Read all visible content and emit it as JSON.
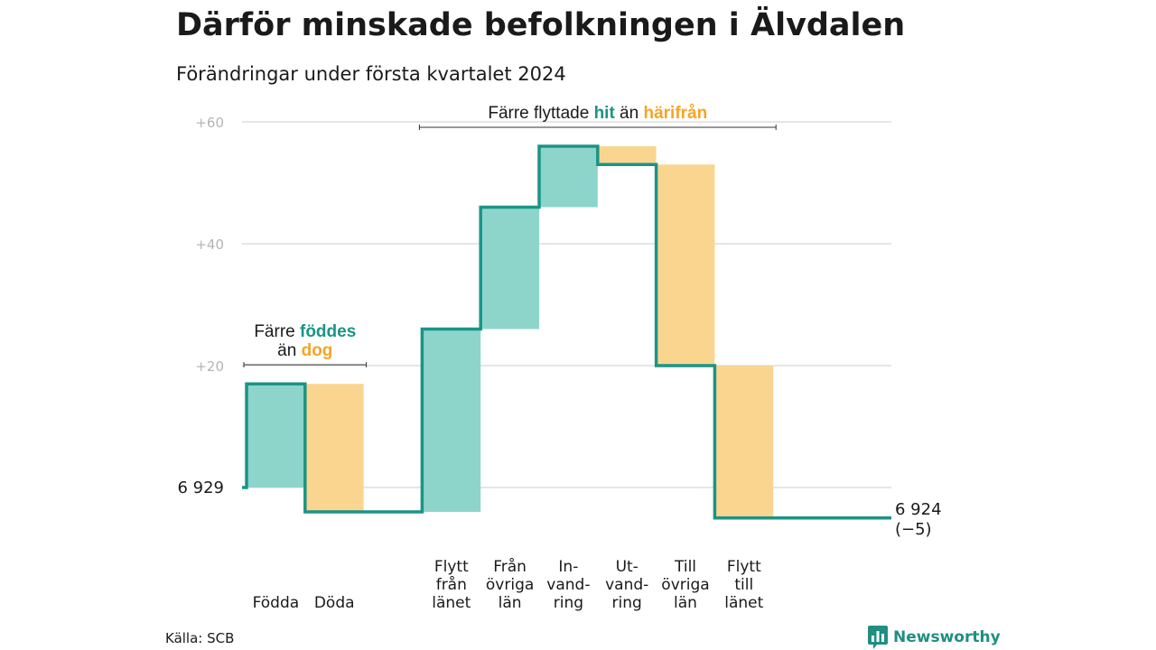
{
  "header": {
    "title": "Därför minskade befolkningen i Älvdalen",
    "subtitle": "Förändringar under första kvartalet 2024"
  },
  "footer": {
    "source": "Källa: SCB",
    "brand": "Newsworthy"
  },
  "colors": {
    "increase": "#8dd5cb",
    "decrease": "#fad590",
    "line": "#1a9486",
    "teal_text": "#1a9486",
    "orange_text": "#f5a524",
    "grid": "#dddddd",
    "tick": "#b4b4b4"
  },
  "icons": {
    "brand_logo": "bar-chart-speech-bubble-icon"
  },
  "chart_data": {
    "type": "waterfall",
    "baseline": 6929,
    "baseline_label": "6 929",
    "end_value": 6924,
    "end_label": "6 924",
    "end_change_label": "(−5)",
    "ylim": [
      -5,
      60
    ],
    "yticks": [
      {
        "value": 20,
        "label": "+20"
      },
      {
        "value": 40,
        "label": "+40"
      },
      {
        "value": 60,
        "label": "+60"
      }
    ],
    "steps": [
      {
        "label": [
          "Födda"
        ],
        "value": 17
      },
      {
        "label": [
          "Döda"
        ],
        "value": -21
      },
      {
        "label": [
          "Flytt",
          "från",
          "länet"
        ],
        "value": 30
      },
      {
        "label": [
          "Från",
          "övriga",
          "län"
        ],
        "value": 20
      },
      {
        "label": [
          "In-",
          "vand-",
          "ring"
        ],
        "value": 10
      },
      {
        "label": [
          "Ut-",
          "vand-",
          "ring"
        ],
        "value": -3
      },
      {
        "label": [
          "Till",
          "övriga",
          "län"
        ],
        "value": -33
      },
      {
        "label": [
          "Flytt",
          "till",
          "länet"
        ],
        "value": -25
      }
    ],
    "annotations": [
      {
        "lines": [
          [
            {
              "text": "Färre ",
              "style": "plain"
            },
            {
              "text": "föddes",
              "style": "teal"
            }
          ],
          [
            {
              "text": "än ",
              "style": "plain"
            },
            {
              "text": "dog",
              "style": "orange"
            }
          ]
        ],
        "span": [
          0,
          1
        ]
      },
      {
        "lines": [
          [
            {
              "text": "Färre flyttade ",
              "style": "plain"
            },
            {
              "text": "hit",
              "style": "teal"
            },
            {
              "text": " än ",
              "style": "plain"
            },
            {
              "text": "härifrån",
              "style": "orange"
            }
          ]
        ],
        "span": [
          2,
          7
        ]
      }
    ]
  }
}
